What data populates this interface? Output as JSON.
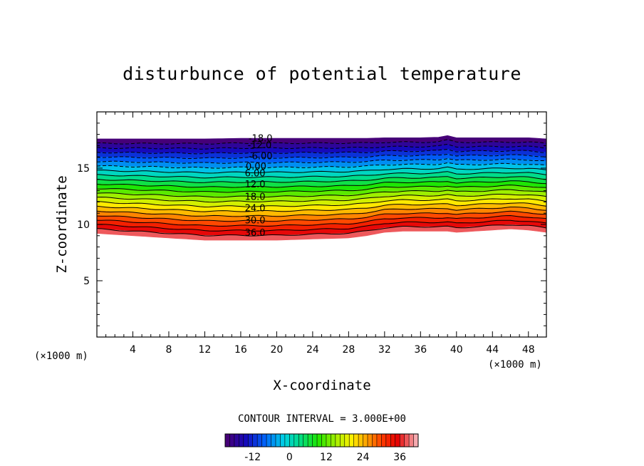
{
  "chart_data": {
    "type": "contour",
    "title": "disturbunce of potential temperature",
    "xlabel": "X-coordinate",
    "ylabel": "Z-coordinate",
    "x_unit": "(×1000 m)",
    "y_unit": "(×1000 m)",
    "xlim": [
      0,
      50
    ],
    "ylim": [
      0,
      20
    ],
    "x_ticks": [
      4,
      8,
      12,
      16,
      20,
      24,
      28,
      32,
      36,
      40,
      44,
      48
    ],
    "y_ticks": [
      5,
      10,
      15
    ],
    "contour_interval_text": "CONTOUR INTERVAL = 3.000E+00",
    "contour_labels": [
      {
        "text": "-18.0",
        "x": 18.2,
        "z": 17.7
      },
      {
        "text": "-12.0",
        "x": 18.1,
        "z": 17.1
      },
      {
        "text": "-6.00",
        "x": 18.2,
        "z": 16.1
      },
      {
        "text": "0.00",
        "x": 17.7,
        "z": 15.2
      },
      {
        "text": "6.00",
        "x": 17.6,
        "z": 14.6
      },
      {
        "text": "12.0",
        "x": 17.6,
        "z": 13.6
      },
      {
        "text": "18.0",
        "x": 17.6,
        "z": 12.5
      },
      {
        "text": "24.0",
        "x": 17.6,
        "z": 11.5
      },
      {
        "text": "30.0",
        "x": 17.6,
        "z": 10.4
      },
      {
        "text": "36.0",
        "x": 17.6,
        "z": 9.3
      }
    ],
    "contour_levels": [
      -18,
      -15,
      -12,
      -9,
      -6,
      -3,
      0,
      3,
      6,
      9,
      12,
      15,
      18,
      21,
      24,
      27,
      30,
      33,
      36,
      39
    ],
    "field_profile": {
      "x": [
        0,
        4,
        8,
        12,
        16,
        20,
        24,
        28,
        30,
        32,
        34,
        36,
        38,
        39,
        40,
        42,
        44,
        46,
        48,
        50
      ],
      "top_z": [
        17.6,
        17.6,
        17.6,
        17.6,
        17.65,
        17.65,
        17.65,
        17.65,
        17.65,
        17.7,
        17.7,
        17.7,
        17.75,
        17.9,
        17.7,
        17.7,
        17.7,
        17.7,
        17.7,
        17.6
      ],
      "bottom_z": [
        9.2,
        9.0,
        8.8,
        8.6,
        8.6,
        8.6,
        8.7,
        8.8,
        9.0,
        9.3,
        9.4,
        9.4,
        9.4,
        9.4,
        9.3,
        9.4,
        9.5,
        9.6,
        9.5,
        9.3
      ]
    },
    "colorbar": {
      "min": -21,
      "max": 42,
      "ticks": [
        -12,
        0,
        12,
        24,
        36
      ]
    }
  }
}
